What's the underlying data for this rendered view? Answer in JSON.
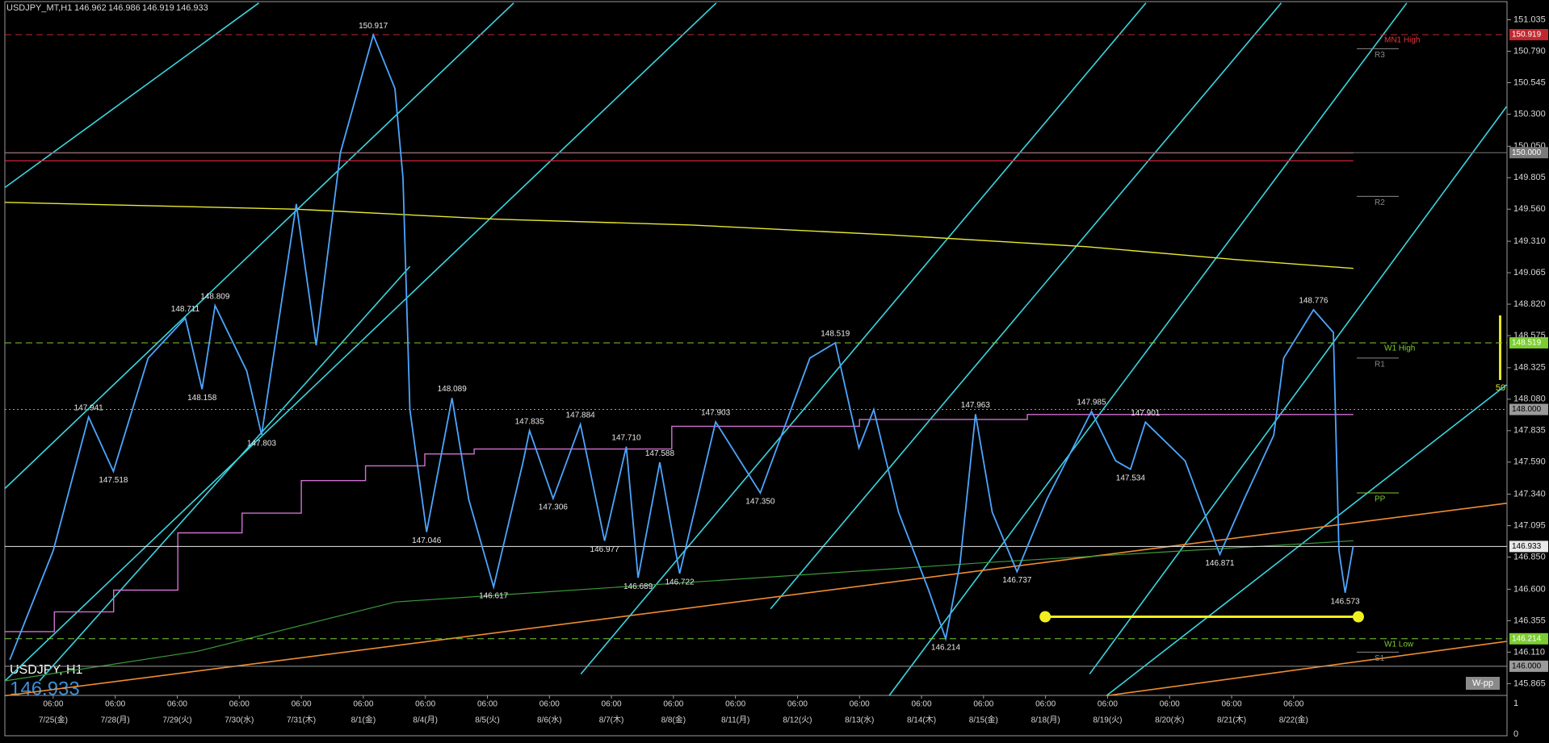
{
  "chart_data": {
    "type": "line",
    "symbol": "USDJPY_MT,H1",
    "ohlc": [
      146.962,
      146.986,
      146.919,
      146.933
    ],
    "symbol_period": "USDJPY, H1",
    "color": "#4da6ff",
    "x": [
      -0.7,
      0,
      0.57,
      0.97,
      1.53,
      2.13,
      2.4,
      2.61,
      3.12,
      3.36,
      3.92,
      4.24,
      4.63,
      5.16,
      5.51,
      5.64,
      5.75,
      6.02,
      6.43,
      6.7,
      7.1,
      7.58,
      7.68,
      8.06,
      8.5,
      8.89,
      9.24,
      9.43,
      9.78,
      10.1,
      10.68,
      11.4,
      12.2,
      12.61,
      12.99,
      13.23,
      13.63,
      14.11,
      14.39,
      14.62,
      14.87,
      15.14,
      15.54,
      16.02,
      16.74,
      17.13,
      17.37,
      17.61,
      18.25,
      18.81,
      19.2,
      19.68,
      19.84,
      20.32,
      20.64,
      20.73,
      20.83,
      20.96
    ],
    "values": [
      146.05,
      146.9,
      147.941,
      147.518,
      148.4,
      148.711,
      148.158,
      148.809,
      148.3,
      147.803,
      149.6,
      148.5,
      150.0,
      150.917,
      150.5,
      149.8,
      148.0,
      147.046,
      148.089,
      147.3,
      146.617,
      147.6,
      147.835,
      147.306,
      147.884,
      146.977,
      147.71,
      146.689,
      147.588,
      146.722,
      147.903,
      147.35,
      148.4,
      148.519,
      147.7,
      148.0,
      147.2,
      146.6,
      146.214,
      146.8,
      147.963,
      147.2,
      146.737,
      147.3,
      147.985,
      147.6,
      147.534,
      147.901,
      147.6,
      146.871,
      147.3,
      147.8,
      148.4,
      148.776,
      148.6,
      146.9,
      146.573,
      146.933
    ],
    "annotations": [
      {
        "x": 0.57,
        "value": 147.941
      },
      {
        "x": 0.97,
        "value": 147.518
      },
      {
        "x": 2.13,
        "value": 148.711
      },
      {
        "x": 2.4,
        "value": 148.158
      },
      {
        "x": 2.61,
        "value": 148.809
      },
      {
        "x": 3.36,
        "value": 147.803
      },
      {
        "x": 5.16,
        "value": 150.917
      },
      {
        "x": 6.02,
        "value": 147.046
      },
      {
        "x": 6.43,
        "value": 148.089
      },
      {
        "x": 7.1,
        "value": 146.617
      },
      {
        "x": 7.68,
        "value": 147.835
      },
      {
        "x": 8.06,
        "value": 147.306
      },
      {
        "x": 8.5,
        "value": 147.884
      },
      {
        "x": 8.89,
        "value": 146.977
      },
      {
        "x": 9.24,
        "value": 147.71,
        "label": "147.710"
      },
      {
        "x": 9.43,
        "value": 146.689
      },
      {
        "x": 9.78,
        "value": 147.588
      },
      {
        "x": 10.1,
        "value": 146.722
      },
      {
        "x": 10.68,
        "value": 147.903
      },
      {
        "x": 11.4,
        "value": 147.35,
        "label": "147.350"
      },
      {
        "x": 12.61,
        "value": 148.519
      },
      {
        "x": 14.39,
        "value": 146.214
      },
      {
        "x": 14.87,
        "value": 147.963
      },
      {
        "x": 15.54,
        "value": 146.737
      },
      {
        "x": 16.74,
        "value": 147.985
      },
      {
        "x": 17.37,
        "value": 147.534
      },
      {
        "x": 17.61,
        "value": 147.901
      },
      {
        "x": 18.81,
        "value": 146.871
      },
      {
        "x": 20.32,
        "value": 148.776
      },
      {
        "x": 20.83,
        "value": 146.573
      }
    ],
    "levels": [
      {
        "value": 150.919,
        "color": "#c0282d",
        "style": "dashed",
        "name": "MN1 High"
      },
      {
        "value": 150.0,
        "label": "150.000",
        "color": "#7a7a7a",
        "style": "solid"
      },
      {
        "value": 148.519,
        "color": "#7ccd32",
        "style": "dashed",
        "name": "W1 High"
      },
      {
        "value": 148.0,
        "label": "148.000",
        "color": "#9a9a9a",
        "style": "dotted"
      },
      {
        "value": 146.933,
        "color": "#e8e8e8",
        "style": "solid"
      },
      {
        "value": 146.214,
        "color": "#7ccd32",
        "style": "dashed",
        "name": "W1 Low"
      },
      {
        "value": 146.0,
        "label": "146.000",
        "color": "#9a9a9a",
        "style": "solid"
      }
    ],
    "pivots": [
      {
        "name": "R3",
        "value": 150.81,
        "color": "#8a8a8a"
      },
      {
        "name": "R2",
        "value": 149.66,
        "color": "#8a8a8a"
      },
      {
        "name": "R1",
        "value": 148.4,
        "color": "#8a8a8a"
      },
      {
        "name": "PP",
        "value": 147.35,
        "color": "#7ccd32"
      },
      {
        "name": "S1",
        "value": 146.11,
        "color": "#8a8a8a"
      }
    ],
    "xlim": [
      -0.78,
      23.44
    ],
    "xtick_time": "06:00",
    "xticks": [
      {
        "value": 0,
        "label": "7/25(金)"
      },
      {
        "value": 1,
        "label": "7/28(月)"
      },
      {
        "value": 2,
        "label": "7/29(火)"
      },
      {
        "value": 3,
        "label": "7/30(水)"
      },
      {
        "value": 4,
        "label": "7/31(木)"
      },
      {
        "value": 5,
        "label": "8/1(金)"
      },
      {
        "value": 6,
        "label": "8/4(月)"
      },
      {
        "value": 7,
        "label": "8/5(火)"
      },
      {
        "value": 8,
        "label": "8/6(水)"
      },
      {
        "value": 9,
        "label": "8/7(木)"
      },
      {
        "value": 10,
        "label": "8/8(金)"
      },
      {
        "value": 11,
        "label": "8/11(月)"
      },
      {
        "value": 12,
        "label": "8/12(火)"
      },
      {
        "value": 13,
        "label": "8/13(水)"
      },
      {
        "value": 14,
        "label": "8/14(木)"
      },
      {
        "value": 15,
        "label": "8/15(金)"
      },
      {
        "value": 16,
        "label": "8/18(月)"
      },
      {
        "value": 17,
        "label": "8/19(火)"
      },
      {
        "value": 18,
        "label": "8/20(水)"
      },
      {
        "value": 19,
        "label": "8/21(木)"
      },
      {
        "value": 20,
        "label": "8/22(金)"
      }
    ],
    "ylim": [
      145.773,
      151.189
    ],
    "yticks": [
      151.035,
      {
        "value": 150.79,
        "label": "150.790"
      },
      150.545,
      {
        "value": 150.3,
        "label": "150.300"
      },
      {
        "value": 150.05,
        "label": "150.050"
      },
      149.805,
      {
        "value": 149.56,
        "label": "149.560"
      },
      {
        "value": 149.31,
        "label": "149.310"
      },
      149.065,
      {
        "value": 148.82,
        "label": "148.820"
      },
      148.575,
      148.325,
      {
        "value": 148.08,
        "label": "148.080"
      },
      147.835,
      {
        "value": 147.59,
        "label": "147.590"
      },
      {
        "value": 147.34,
        "label": "147.340"
      },
      147.095,
      {
        "value": 146.85,
        "label": "146.850"
      },
      {
        "value": 146.6,
        "label": "146.600"
      },
      146.355,
      {
        "value": 146.11,
        "label": "146.110"
      },
      145.865
    ],
    "sub_yticks": [
      1,
      0
    ],
    "indicator_label": "50",
    "button": "W-pp"
  }
}
